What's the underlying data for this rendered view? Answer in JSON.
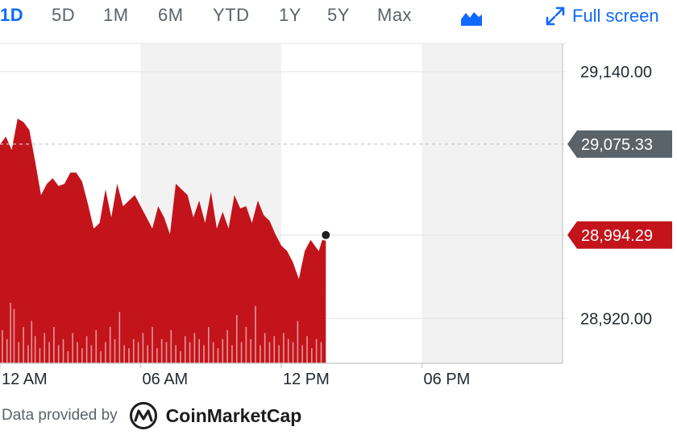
{
  "toolbar": {
    "ranges": [
      "1D",
      "5D",
      "1M",
      "6M",
      "YTD",
      "1Y",
      "5Y",
      "Max"
    ],
    "active_range": "1D",
    "fullscreen_label": "Full screen",
    "chart_type_icon": "mountain-chart-icon",
    "fullscreen_icon": "expand-arrows-icon",
    "accent_color": "#0f69ff"
  },
  "footer": {
    "provided_by": "Data provided by",
    "provider": "CoinMarketCap"
  },
  "chart_data": {
    "type": "area",
    "xlabel": "",
    "ylabel": "",
    "x_ticks": [
      "12 AM",
      "06 AM",
      "12 PM",
      "06 PM"
    ],
    "y_ticks": [
      28920.0,
      29140.0
    ],
    "y_tick_labels": [
      "28,920.00",
      "29,140.00"
    ],
    "ylim": [
      28880.0,
      29165.0
    ],
    "xlim_hours": [
      0,
      24
    ],
    "series": [
      {
        "color": "#c3141b",
        "x_hours": [
          0,
          0.25,
          0.5,
          0.75,
          1.0,
          1.25,
          1.5,
          1.75,
          2.0,
          2.25,
          2.5,
          2.75,
          3.0,
          3.25,
          3.5,
          3.75,
          4.0,
          4.25,
          4.5,
          4.75,
          5.0,
          5.25,
          5.5,
          5.75,
          6.0,
          6.25,
          6.5,
          6.75,
          7.0,
          7.25,
          7.5,
          7.75,
          8.0,
          8.25,
          8.5,
          8.75,
          9.0,
          9.25,
          9.5,
          9.75,
          10.0,
          10.25,
          10.5,
          10.75,
          11.0,
          11.25,
          11.5,
          11.75,
          12.0,
          12.25,
          12.5,
          12.75,
          13.0,
          13.25,
          13.6,
          13.75,
          13.9
        ],
        "values": [
          29075,
          29082,
          29070,
          29098,
          29095,
          29088,
          29060,
          29030,
          29040,
          29045,
          29038,
          29040,
          29050,
          29050,
          29042,
          29022,
          29000,
          29005,
          29035,
          29010,
          29040,
          29020,
          29025,
          29030,
          29020,
          29010,
          29000,
          29020,
          29010,
          28995,
          29040,
          29035,
          29030,
          29010,
          29025,
          29005,
          29033,
          29000,
          29015,
          29000,
          29030,
          29018,
          29020,
          29005,
          29025,
          29012,
          29007,
          28995,
          28985,
          28980,
          28970,
          28955,
          28980,
          28990,
          28980,
          28990,
          28994
        ]
      }
    ],
    "last_price": 28994.29,
    "last_price_label": "28,994.29",
    "prev_close": 29075.33,
    "prev_close_label": "29,075.33",
    "volume": {
      "color": "#c3141b",
      "x_hours": [
        0.1,
        0.3,
        0.45,
        0.6,
        0.8,
        1.0,
        1.2,
        1.35,
        1.5,
        1.7,
        1.9,
        2.1,
        2.3,
        2.5,
        2.7,
        2.9,
        3.1,
        3.3,
        3.5,
        3.7,
        3.9,
        4.1,
        4.3,
        4.5,
        4.7,
        4.9,
        5.1,
        5.3,
        5.5,
        5.7,
        5.9,
        6.1,
        6.3,
        6.5,
        6.7,
        6.9,
        7.1,
        7.3,
        7.5,
        7.7,
        7.9,
        8.1,
        8.3,
        8.5,
        8.7,
        8.9,
        9.1,
        9.3,
        9.5,
        9.7,
        9.9,
        10.1,
        10.3,
        10.5,
        10.7,
        10.9,
        11.1,
        11.3,
        11.5,
        11.7,
        11.9,
        12.1,
        12.3,
        12.5,
        12.7,
        12.9,
        13.1,
        13.3,
        13.5,
        13.7
      ],
      "values": [
        0.55,
        0.4,
        1.0,
        0.9,
        0.35,
        0.6,
        0.3,
        0.7,
        0.45,
        0.25,
        0.5,
        0.35,
        0.6,
        0.3,
        0.4,
        0.2,
        0.5,
        0.35,
        0.25,
        0.45,
        0.3,
        0.55,
        0.2,
        0.35,
        0.6,
        0.4,
        0.85,
        0.3,
        0.25,
        0.4,
        0.35,
        0.5,
        0.3,
        0.6,
        0.25,
        0.4,
        0.35,
        0.55,
        0.3,
        0.2,
        0.45,
        0.35,
        0.5,
        0.4,
        0.3,
        0.6,
        0.35,
        0.25,
        0.4,
        0.55,
        0.3,
        0.8,
        0.35,
        0.6,
        0.4,
        0.95,
        0.3,
        0.5,
        0.35,
        0.45,
        0.3,
        0.5,
        0.4,
        0.35,
        0.7,
        0.3,
        0.45,
        0.25,
        0.4,
        0.35
      ]
    },
    "shaded_bands_hours": [
      [
        6,
        12
      ],
      [
        18,
        24
      ]
    ],
    "grid": true,
    "marker_color": "#1f1f1f",
    "prev_close_color": "#5b636a"
  }
}
